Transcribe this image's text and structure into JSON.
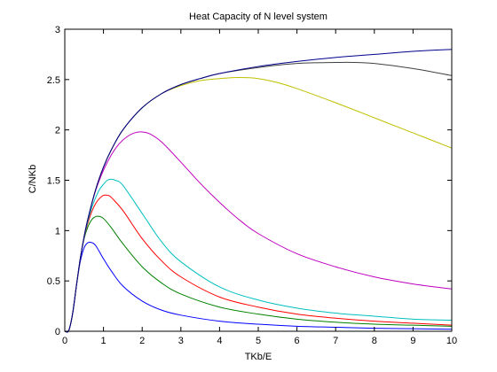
{
  "chart_data": {
    "type": "line",
    "title": "Heat Capacity of N level system",
    "xlabel": "TKb/E",
    "ylabel": "C/NKb",
    "xlim": [
      0,
      10
    ],
    "ylim": [
      0,
      3
    ],
    "xticks": [
      0,
      1,
      2,
      3,
      4,
      5,
      6,
      7,
      8,
      9,
      10
    ],
    "yticks": [
      0,
      0.5,
      1,
      1.5,
      2,
      2.5,
      3
    ],
    "x_tick_labels": [
      "0",
      "1",
      "2",
      "3",
      "4",
      "5",
      "6",
      "7",
      "8",
      "9",
      "10"
    ],
    "y_tick_labels": [
      "0",
      "0.5",
      "1",
      "1.5",
      "2",
      "2.5",
      "3"
    ],
    "grid": false,
    "legend": "none",
    "series": [
      {
        "color": "#0000ff",
        "x": [
          0,
          0.1,
          0.2,
          0.3,
          0.4,
          0.5,
          0.6,
          0.7,
          0.8,
          1,
          1.2,
          1.5,
          2,
          2.5,
          3,
          4,
          5,
          6,
          7,
          8,
          9,
          10
        ],
        "y": [
          0,
          0.005,
          0.17,
          0.45,
          0.69,
          0.83,
          0.88,
          0.88,
          0.85,
          0.72,
          0.6,
          0.45,
          0.3,
          0.21,
          0.16,
          0.1,
          0.07,
          0.05,
          0.04,
          0.03,
          0.025,
          0.02
        ]
      },
      {
        "color": "#008000",
        "x": [
          0,
          0.1,
          0.2,
          0.3,
          0.4,
          0.5,
          0.6,
          0.7,
          0.8,
          0.9,
          1,
          1.2,
          1.5,
          2,
          2.5,
          3,
          4,
          5,
          6,
          7,
          8,
          9,
          10
        ],
        "y": [
          0,
          0.005,
          0.17,
          0.45,
          0.72,
          0.92,
          1.04,
          1.11,
          1.14,
          1.14,
          1.12,
          1.03,
          0.87,
          0.64,
          0.48,
          0.37,
          0.24,
          0.17,
          0.12,
          0.09,
          0.07,
          0.06,
          0.05
        ]
      },
      {
        "color": "#ff0000",
        "x": [
          0,
          0.1,
          0.2,
          0.3,
          0.4,
          0.5,
          0.6,
          0.7,
          0.8,
          0.9,
          1,
          1.1,
          1.2,
          1.5,
          2,
          2.5,
          3,
          4,
          5,
          6,
          7,
          8,
          9,
          10
        ],
        "y": [
          0,
          0.005,
          0.17,
          0.45,
          0.72,
          0.93,
          1.08,
          1.19,
          1.27,
          1.32,
          1.35,
          1.35,
          1.33,
          1.2,
          0.92,
          0.7,
          0.54,
          0.34,
          0.24,
          0.17,
          0.13,
          0.1,
          0.08,
          0.06
        ]
      },
      {
        "color": "#00bfbf",
        "x": [
          0,
          0.1,
          0.2,
          0.3,
          0.4,
          0.5,
          0.6,
          0.7,
          0.8,
          0.9,
          1,
          1.1,
          1.2,
          1.3,
          1.5,
          2,
          2.5,
          3,
          4,
          5,
          6,
          7,
          8,
          9,
          10
        ],
        "y": [
          0,
          0.005,
          0.17,
          0.45,
          0.72,
          0.93,
          1.1,
          1.23,
          1.33,
          1.41,
          1.46,
          1.5,
          1.51,
          1.5,
          1.45,
          1.17,
          0.89,
          0.69,
          0.44,
          0.31,
          0.23,
          0.18,
          0.15,
          0.12,
          0.11
        ]
      },
      {
        "color": "#bf00bf",
        "x": [
          0,
          0.1,
          0.2,
          0.3,
          0.4,
          0.5,
          0.6,
          0.8,
          1,
          1.2,
          1.4,
          1.6,
          1.8,
          2,
          2.2,
          2.5,
          3,
          3.5,
          4,
          4.5,
          5,
          6,
          7,
          8,
          9,
          10
        ],
        "y": [
          0,
          0.005,
          0.17,
          0.45,
          0.72,
          0.94,
          1.12,
          1.4,
          1.6,
          1.75,
          1.86,
          1.93,
          1.97,
          1.98,
          1.96,
          1.88,
          1.68,
          1.47,
          1.28,
          1.11,
          0.97,
          0.77,
          0.64,
          0.54,
          0.47,
          0.42
        ]
      },
      {
        "color": "#bfbf00",
        "x": [
          0,
          0.1,
          0.2,
          0.3,
          0.4,
          0.5,
          0.6,
          0.8,
          1,
          1.2,
          1.5,
          2,
          2.5,
          3,
          3.5,
          4,
          4.5,
          5,
          5.5,
          6,
          7,
          8,
          9,
          10
        ],
        "y": [
          0,
          0.005,
          0.17,
          0.45,
          0.72,
          0.94,
          1.12,
          1.41,
          1.63,
          1.8,
          2.0,
          2.22,
          2.36,
          2.44,
          2.49,
          2.51,
          2.52,
          2.51,
          2.47,
          2.41,
          2.27,
          2.12,
          1.97,
          1.82
        ]
      },
      {
        "color": "#404040",
        "x": [
          0,
          0.1,
          0.2,
          0.3,
          0.4,
          0.5,
          0.6,
          0.8,
          1,
          1.2,
          1.5,
          2,
          2.5,
          3,
          3.5,
          4,
          5,
          6,
          7,
          7.5,
          8,
          9,
          10
        ],
        "y": [
          0,
          0.005,
          0.17,
          0.45,
          0.72,
          0.94,
          1.12,
          1.41,
          1.63,
          1.8,
          2.0,
          2.22,
          2.36,
          2.45,
          2.51,
          2.56,
          2.62,
          2.66,
          2.67,
          2.67,
          2.66,
          2.61,
          2.54
        ]
      },
      {
        "color": "#00008b",
        "x": [
          0,
          0.1,
          0.2,
          0.3,
          0.4,
          0.5,
          0.6,
          0.8,
          1,
          1.2,
          1.5,
          2,
          2.5,
          3,
          3.5,
          4,
          5,
          6,
          7,
          8,
          9,
          10
        ],
        "y": [
          0,
          0.005,
          0.17,
          0.45,
          0.72,
          0.94,
          1.12,
          1.41,
          1.63,
          1.8,
          2.0,
          2.22,
          2.36,
          2.45,
          2.51,
          2.56,
          2.63,
          2.68,
          2.72,
          2.75,
          2.78,
          2.8
        ]
      }
    ]
  }
}
